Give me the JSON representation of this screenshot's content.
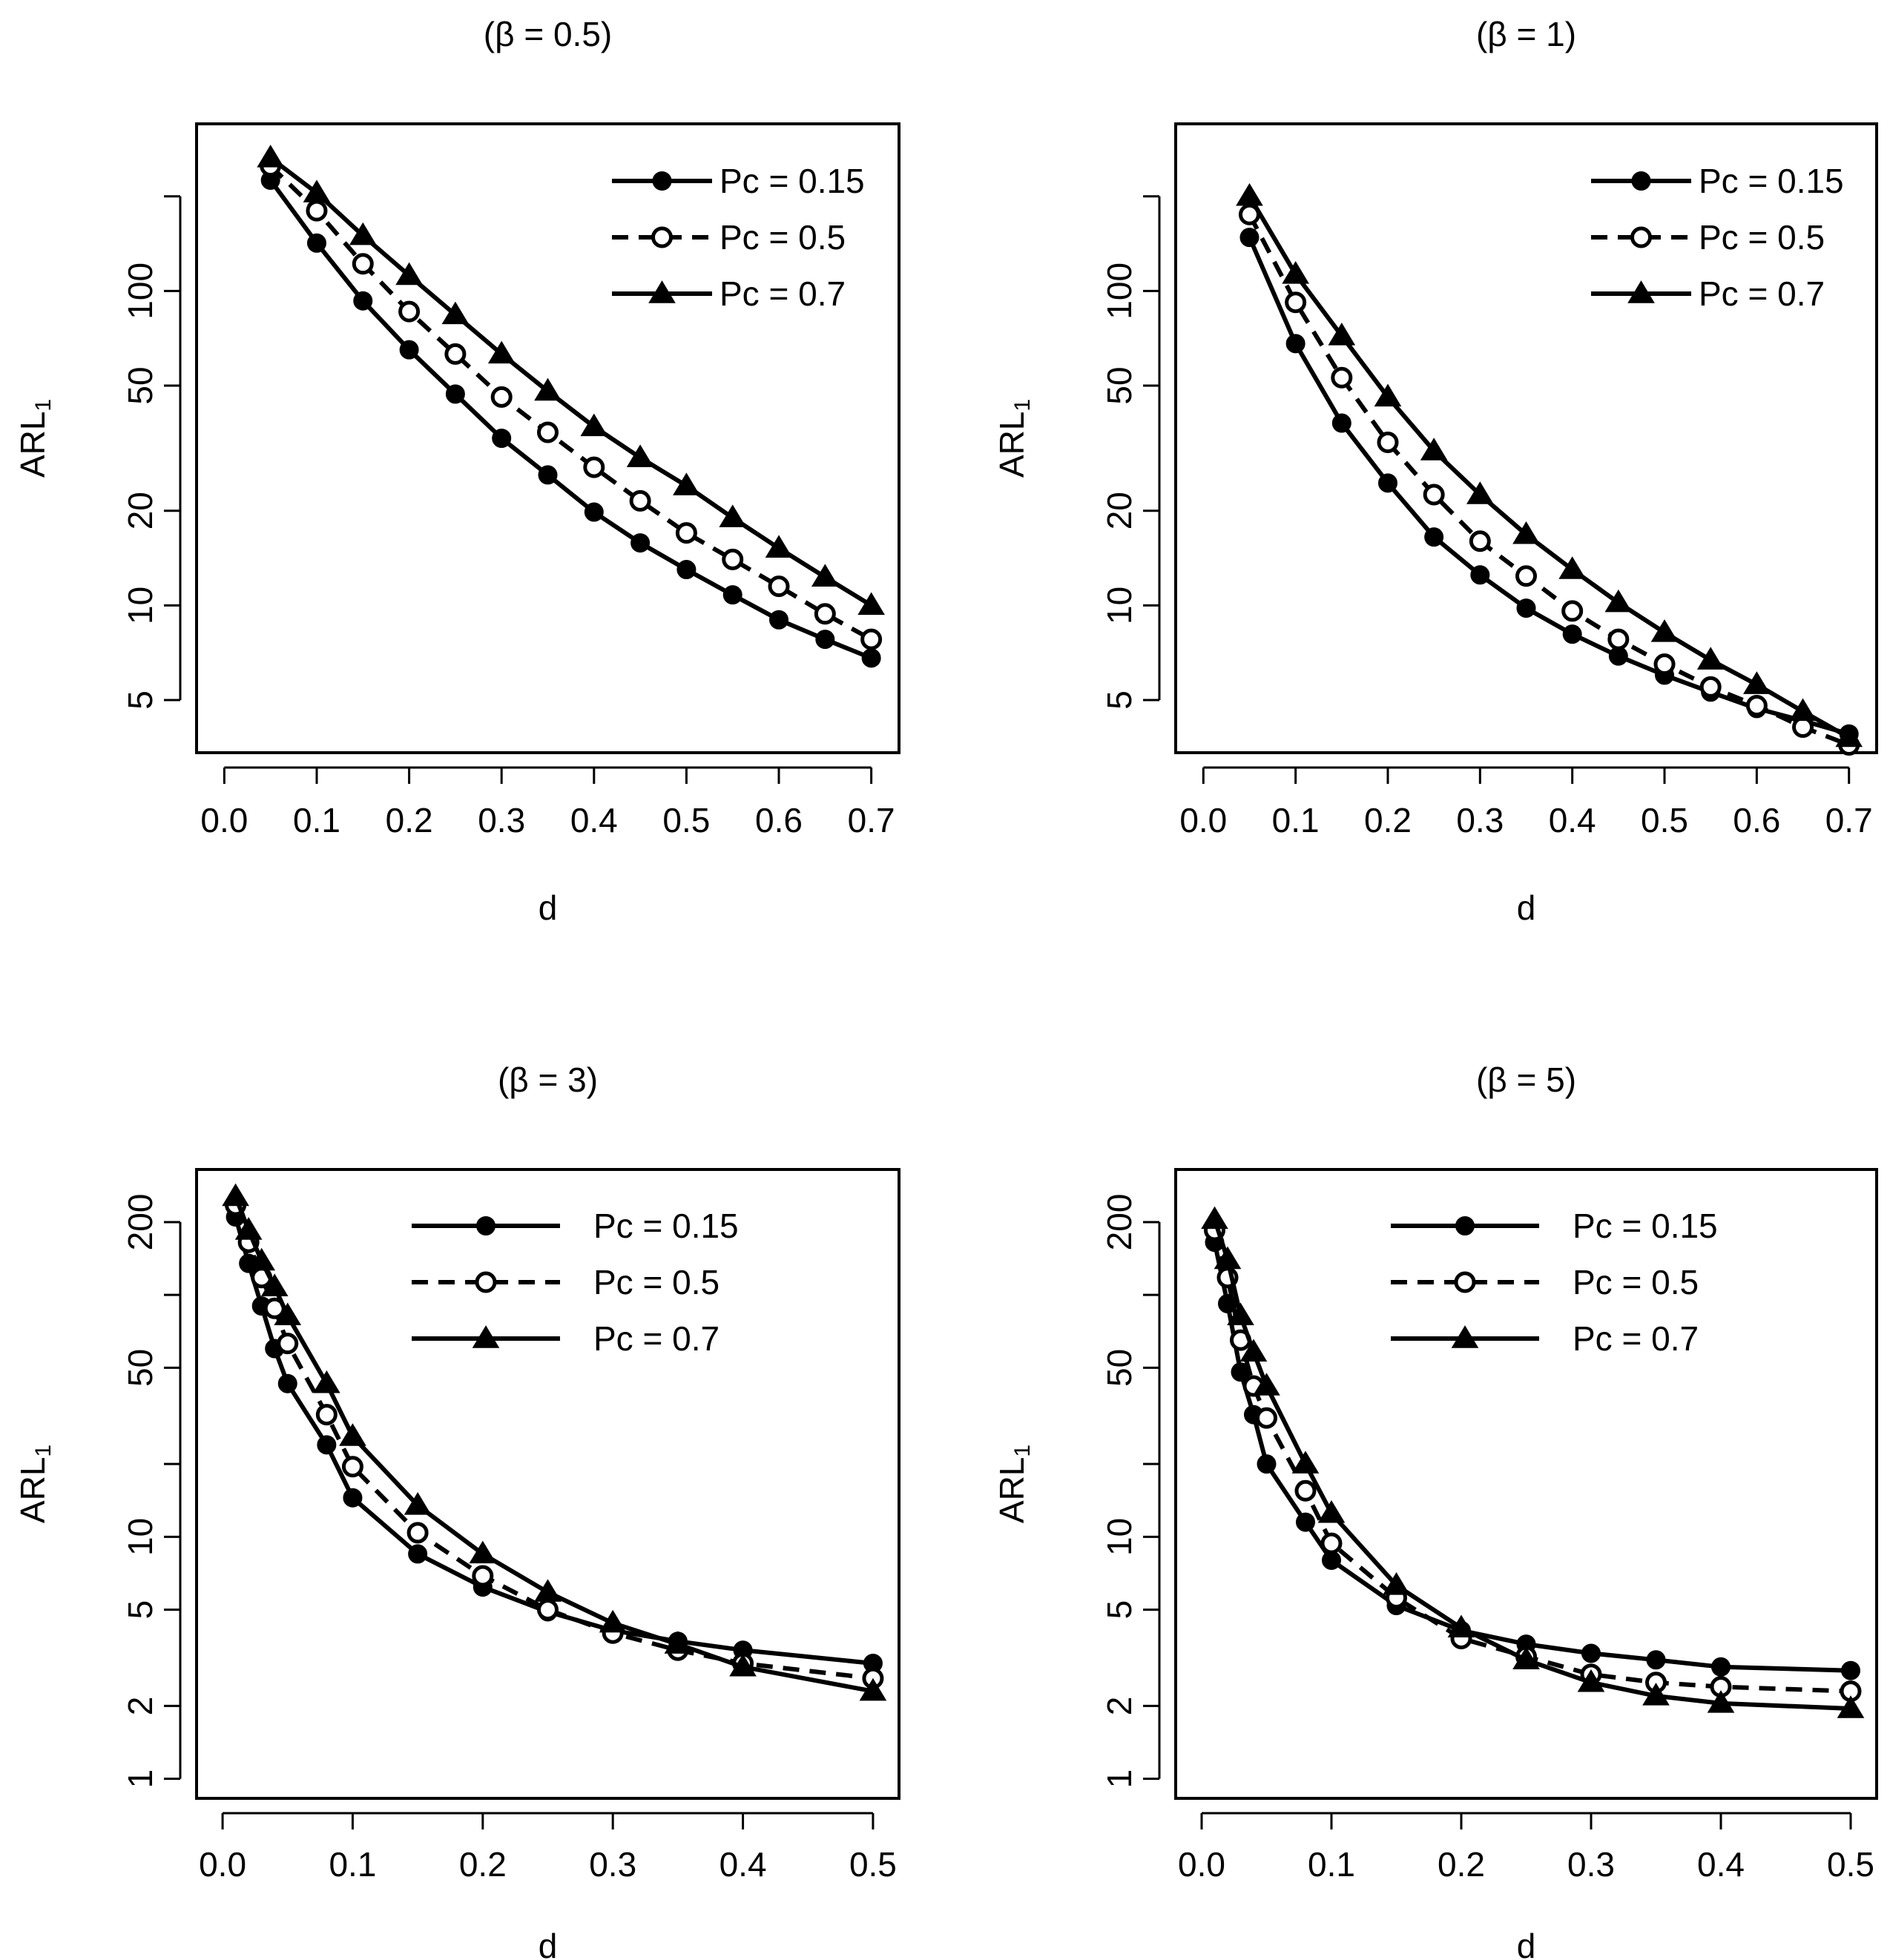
{
  "chart_data": [
    {
      "type": "line",
      "title": "(β = 0.5)",
      "xlabel": "d",
      "ylabel": "ARL",
      "ylabel_sub": "1",
      "yscale": "log",
      "xlim": [
        -0.03,
        0.73
      ],
      "ylim": [
        3.4,
        340
      ],
      "xticks": [
        0,
        0.1,
        0.2,
        0.3,
        0.4,
        0.5,
        0.6,
        0.7
      ],
      "xtick_labels": [
        "0.0",
        "0.1",
        "0.2",
        "0.3",
        "0.4",
        "0.5",
        "0.6",
        "0.7"
      ],
      "yticks": [
        5,
        10,
        20,
        50,
        100
      ],
      "ytick_labels": [
        "5",
        "10",
        "20",
        "50",
        "100"
      ],
      "yaxis_top_tick": 200,
      "legend_position": "top-right",
      "x": [
        0.05,
        0.1,
        0.15,
        0.2,
        0.25,
        0.3,
        0.35,
        0.4,
        0.45,
        0.5,
        0.55,
        0.6,
        0.65,
        0.7
      ],
      "series": [
        {
          "name": "Pc = 0.15",
          "marker": "filled-circle",
          "dash": false,
          "values": [
            225,
            142,
            93,
            65,
            47,
            34,
            26,
            19.8,
            15.8,
            13,
            10.8,
            9,
            7.8,
            6.8
          ]
        },
        {
          "name": "Pc = 0.5",
          "marker": "open-circle",
          "dash": true,
          "values": [
            250,
            180,
            122,
            86,
            63,
            46,
            35.5,
            27.5,
            21.5,
            17,
            14,
            11.5,
            9.4,
            7.8
          ]
        },
        {
          "name": "Pc = 0.7",
          "marker": "filled-triangle",
          "dash": false,
          "values": [
            265,
            205,
            150,
            112,
            84,
            63,
            48,
            37,
            29.5,
            24,
            19,
            15.2,
            12.3,
            10
          ]
        }
      ]
    },
    {
      "type": "line",
      "title": "(β = 1)",
      "xlabel": "d",
      "ylabel": "ARL",
      "ylabel_sub": "1",
      "yscale": "log",
      "xlim": [
        -0.03,
        0.73
      ],
      "ylim": [
        3.4,
        340
      ],
      "xticks": [
        0,
        0.1,
        0.2,
        0.3,
        0.4,
        0.5,
        0.6,
        0.7
      ],
      "xtick_labels": [
        "0.0",
        "0.1",
        "0.2",
        "0.3",
        "0.4",
        "0.5",
        "0.6",
        "0.7"
      ],
      "yticks": [
        5,
        10,
        20,
        50,
        100
      ],
      "ytick_labels": [
        "5",
        "10",
        "20",
        "50",
        "100"
      ],
      "yaxis_top_tick": 200,
      "legend_position": "top-right",
      "x": [
        0.05,
        0.1,
        0.15,
        0.2,
        0.25,
        0.3,
        0.35,
        0.4,
        0.45,
        0.5,
        0.55,
        0.6,
        0.65,
        0.7
      ],
      "series": [
        {
          "name": "Pc = 0.15",
          "marker": "filled-circle",
          "dash": false,
          "values": [
            148,
            68,
            38,
            24.5,
            16.5,
            12.5,
            9.8,
            8.1,
            6.9,
            6,
            5.3,
            4.7,
            4.3,
            3.9
          ]
        },
        {
          "name": "Pc = 0.5",
          "marker": "open-circle",
          "dash": true,
          "values": [
            175,
            92,
            53,
            33,
            22.5,
            16,
            12.4,
            9.6,
            7.8,
            6.5,
            5.5,
            4.8,
            4.1,
            3.6
          ]
        },
        {
          "name": "Pc = 0.7",
          "marker": "filled-triangle",
          "dash": false,
          "values": [
            200,
            113,
            72,
            46,
            31,
            22.5,
            16.8,
            13,
            10.2,
            8.2,
            6.7,
            5.6,
            4.6,
            3.8
          ]
        }
      ]
    },
    {
      "type": "line",
      "title": "(β = 3)",
      "xlabel": "d",
      "ylabel": "ARL",
      "ylabel_sub": "1",
      "yscale": "log",
      "xlim": [
        -0.02,
        0.52
      ],
      "ylim": [
        0.83,
        330
      ],
      "xticks": [
        0,
        0.1,
        0.2,
        0.3,
        0.4,
        0.5
      ],
      "xtick_labels": [
        "0.0",
        "0.1",
        "0.2",
        "0.3",
        "0.4",
        "0.5"
      ],
      "yticks": [
        1,
        2,
        5,
        10,
        20,
        50,
        100,
        200
      ],
      "ytick_labels": [
        "1",
        "2",
        "5",
        "10",
        "",
        "50",
        "",
        "200"
      ],
      "legend_position": "top-center",
      "x": [
        0.01,
        0.02,
        0.03,
        0.04,
        0.05,
        0.08,
        0.1,
        0.15,
        0.2,
        0.25,
        0.3,
        0.35,
        0.4,
        0.5
      ],
      "series": [
        {
          "name": "Pc = 0.15",
          "marker": "filled-circle",
          "dash": false,
          "values": [
            210,
            135,
            90,
            60,
            43,
            24,
            14.5,
            8.5,
            6.2,
            4.9,
            4.1,
            3.7,
            3.4,
            3
          ]
        },
        {
          "name": "Pc = 0.5",
          "marker": "open-circle",
          "dash": true,
          "values": [
            235,
            165,
            118,
            88,
            63,
            32,
            19.5,
            10.4,
            6.9,
            5,
            4,
            3.4,
            3,
            2.6
          ]
        },
        {
          "name": "Pc = 0.7",
          "marker": "filled-triangle",
          "dash": false,
          "values": [
            255,
            185,
            138,
            108,
            82,
            43,
            26,
            13.5,
            8.5,
            5.9,
            4.4,
            3.6,
            2.9,
            2.3
          ]
        }
      ]
    },
    {
      "type": "line",
      "title": "(β = 5)",
      "xlabel": "d",
      "ylabel": "ARL",
      "ylabel_sub": "1",
      "yscale": "log",
      "xlim": [
        -0.02,
        0.52
      ],
      "ylim": [
        0.83,
        330
      ],
      "xticks": [
        0,
        0.1,
        0.2,
        0.3,
        0.4,
        0.5
      ],
      "xtick_labels": [
        "0.0",
        "0.1",
        "0.2",
        "0.3",
        "0.4",
        "0.5"
      ],
      "yticks": [
        1,
        2,
        5,
        10,
        20,
        50,
        100,
        200
      ],
      "ytick_labels": [
        "1",
        "2",
        "5",
        "10",
        "",
        "50",
        "",
        "200"
      ],
      "legend_position": "top-right",
      "x": [
        0.01,
        0.02,
        0.03,
        0.04,
        0.05,
        0.08,
        0.1,
        0.15,
        0.2,
        0.25,
        0.3,
        0.35,
        0.4,
        0.5
      ],
      "series": [
        {
          "name": "Pc = 0.15",
          "marker": "filled-circle",
          "dash": false,
          "values": [
            165,
            92,
            48,
            32,
            20,
            11.5,
            8,
            5.2,
            4.1,
            3.6,
            3.3,
            3.1,
            2.9,
            2.8
          ]
        },
        {
          "name": "Pc = 0.5",
          "marker": "open-circle",
          "dash": true,
          "values": [
            185,
            118,
            65,
            42,
            31,
            15.5,
            9.4,
            5.6,
            3.8,
            3.2,
            2.7,
            2.5,
            2.4,
            2.3
          ]
        },
        {
          "name": "Pc = 0.7",
          "marker": "filled-triangle",
          "dash": false,
          "values": [
            205,
            140,
            82,
            58,
            42,
            20,
            12.5,
            6.3,
            4.2,
            3.1,
            2.5,
            2.2,
            2.05,
            1.95
          ]
        }
      ]
    }
  ]
}
